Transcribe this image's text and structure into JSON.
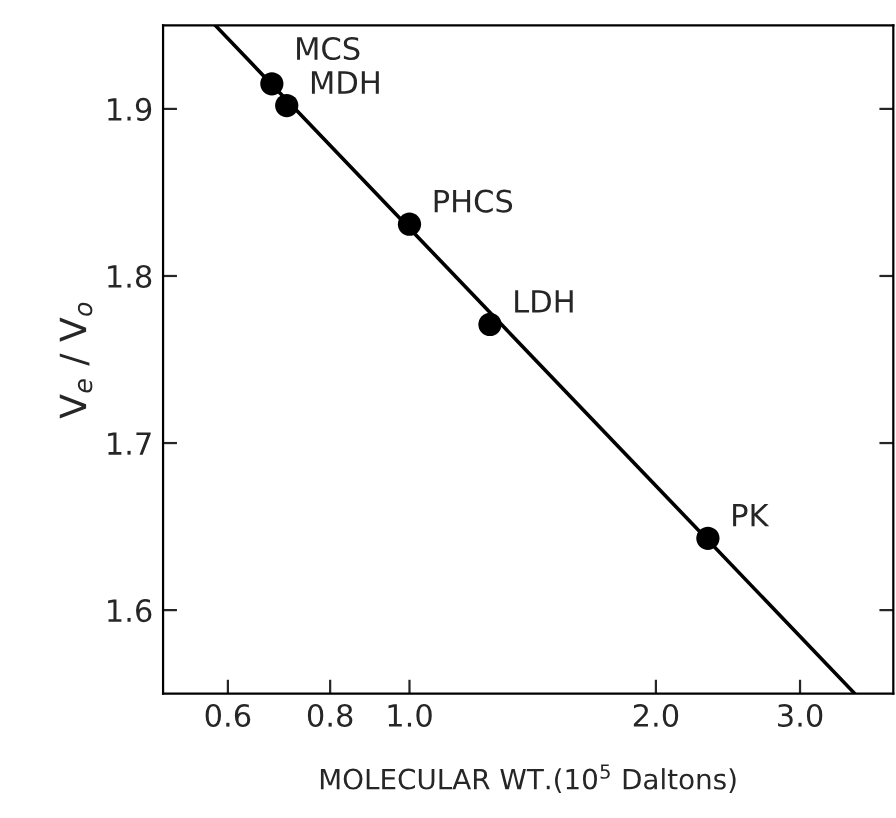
{
  "chart_data": {
    "type": "scatter",
    "xlabel": "MOLECULAR WT.(10$^{5}$ Daltons)",
    "ylabel": "V$_{e}$ / V$_{o}$",
    "log": "x",
    "xlim": [
      0.5,
      3.9
    ],
    "ylim": [
      1.55,
      1.95
    ],
    "xticks": [
      {
        "value": 0.6,
        "label": "0.6"
      },
      {
        "value": 0.8,
        "label": "0.8"
      },
      {
        "value": 1.0,
        "label": "1.0"
      },
      {
        "value": 2.0,
        "label": "2.0"
      },
      {
        "value": 3.0,
        "label": "3.0"
      }
    ],
    "yticks": [
      1.6,
      1.7,
      1.8,
      1.9
    ],
    "grid": false,
    "series": [
      {
        "marker": "circle",
        "color": "#000000",
        "x": [
          0.679,
          0.708,
          1.0,
          1.254,
          2.315
        ],
        "values": [
          1.915,
          1.902,
          1.831,
          1.771,
          1.643
        ]
      },
      {
        "type": "line",
        "marker": "none",
        "color": "#000000",
        "line_style": "solid",
        "x": [
          0.579,
          3.5
        ],
        "values": [
          1.95,
          1.55
        ]
      }
    ],
    "annotations": [
      {
        "text": "MCS",
        "x": 0.679,
        "y": 1.915
      },
      {
        "text": "MDH",
        "x": 0.708,
        "y": 1.902
      },
      {
        "text": "PHCS",
        "x": 1.0,
        "y": 1.831
      },
      {
        "text": "LDH",
        "x": 1.254,
        "y": 1.771
      },
      {
        "text": "PK",
        "x": 2.315,
        "y": 1.643
      }
    ]
  }
}
